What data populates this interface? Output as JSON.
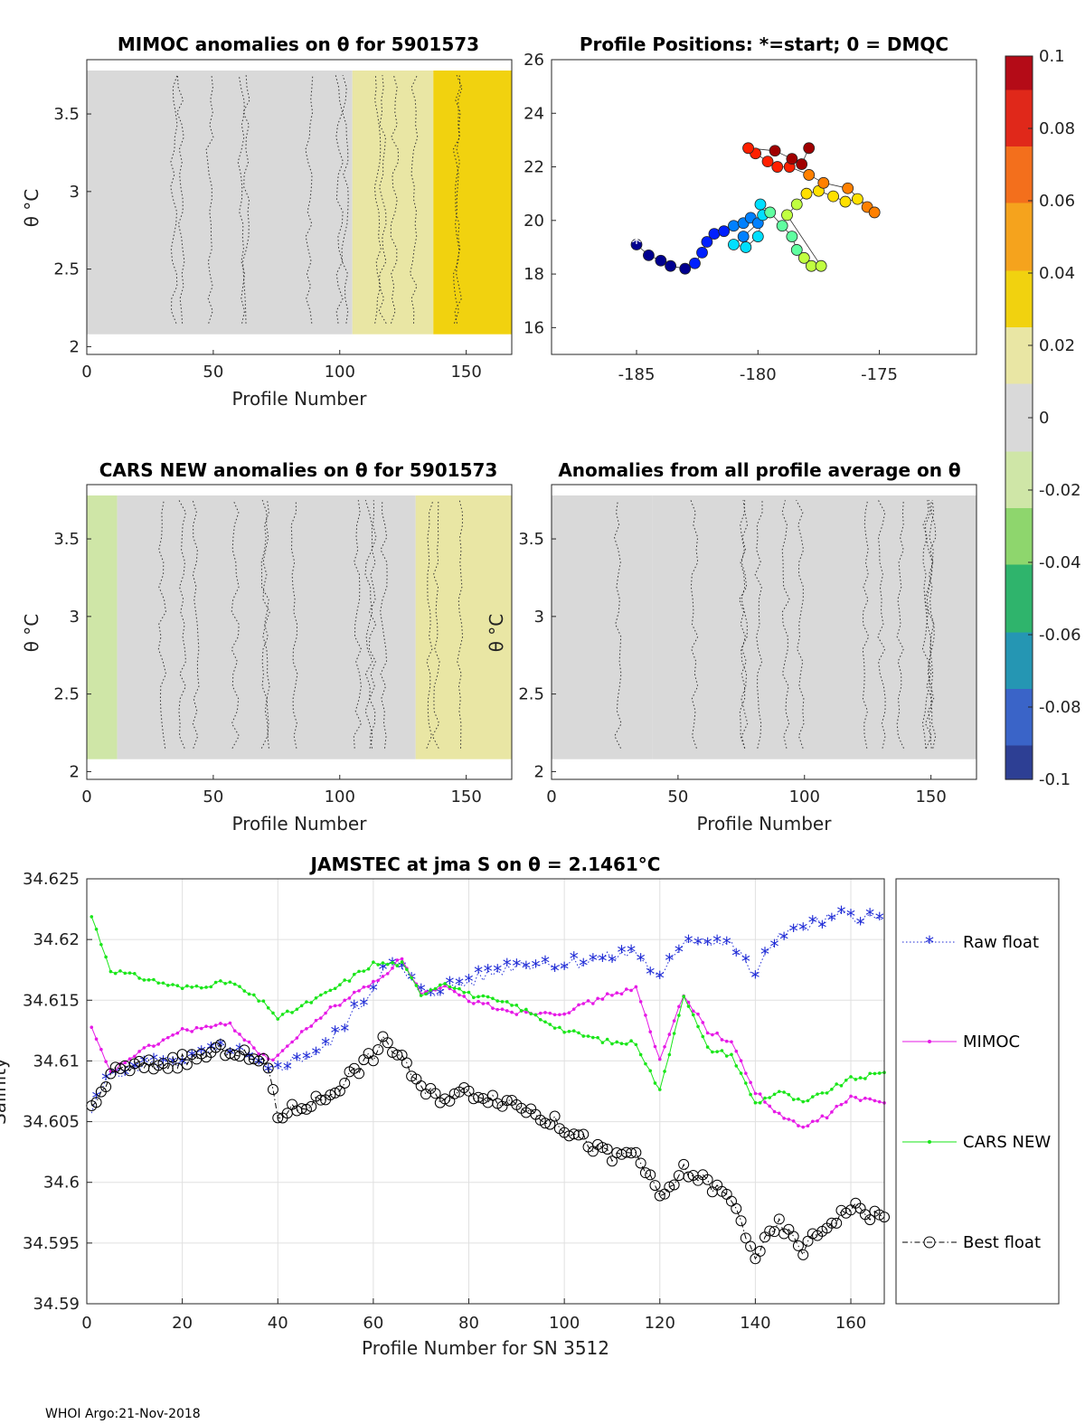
{
  "footer": "WHOI Argo:21-Nov-2018",
  "colorbar": {
    "ticks": [
      "0.1",
      "0.08",
      "0.06",
      "0.04",
      "0.02",
      "0",
      "-0.02",
      "-0.04",
      "-0.06",
      "-0.08",
      "-0.1"
    ],
    "colors": [
      "#b40b17",
      "#e0281a",
      "#f36f1c",
      "#f5a31d",
      "#f1d20f",
      "#e9e6a4",
      "#d9d9d9",
      "#cfe6a7",
      "#8ed66d",
      "#2fb46c",
      "#2596b3",
      "#3a64c8",
      "#2d3f94"
    ]
  },
  "panels": {
    "mimoc": {
      "title": "MIMOC anomalies on θ  for 5901573",
      "xlabel": "Profile Number",
      "ylabel": "θ °C",
      "xticks": [
        "0",
        "50",
        "100",
        "150"
      ],
      "yticks": [
        "2",
        "2.5",
        "3",
        "3.5"
      ]
    },
    "positions": {
      "title": "Profile Positions: *=start; 0 = DMQC",
      "xticks": [
        "-185",
        "-180",
        "-175"
      ],
      "yticks": [
        "16",
        "18",
        "20",
        "22",
        "24",
        "26"
      ]
    },
    "cars": {
      "title": "CARS NEW anomalies on θ for 5901573",
      "xlabel": "Profile Number",
      "ylabel": "θ °C",
      "xticks": [
        "0",
        "50",
        "100",
        "150"
      ],
      "yticks": [
        "2",
        "2.5",
        "3",
        "3.5"
      ]
    },
    "allavg": {
      "title": "Anomalies from all profile average on θ",
      "xlabel": "Profile Number",
      "ylabel": "θ °C",
      "xticks": [
        "0",
        "50",
        "100",
        "150"
      ],
      "yticks": [
        "2",
        "2.5",
        "3",
        "3.5"
      ]
    }
  },
  "chart_data": [
    {
      "type": "heatmap",
      "title": "MIMOC anomalies on θ  for 5901573",
      "xlabel": "Profile Number",
      "ylabel": "θ °C",
      "xlim": [
        0,
        168
      ],
      "ylim": [
        1.95,
        3.85
      ],
      "anomaly_by_profile_segment": [
        {
          "from": 0,
          "to": 105,
          "anomaly": -0.003
        },
        {
          "from": 105,
          "to": 137,
          "anomaly": 0.012
        },
        {
          "from": 137,
          "to": 168,
          "anomaly": 0.04
        }
      ],
      "clim": [
        -0.1,
        0.1
      ]
    },
    {
      "type": "scatter",
      "title": "Profile Positions: *=start; 0 = DMQC",
      "xlim": [
        -188.5,
        -171
      ],
      "ylim": [
        15,
        26
      ],
      "points_lon_lat": [
        [
          -185.0,
          19.1
        ],
        [
          -184.5,
          18.7
        ],
        [
          -184.0,
          18.5
        ],
        [
          -183.6,
          18.3
        ],
        [
          -183.0,
          18.2
        ],
        [
          -182.6,
          18.4
        ],
        [
          -182.3,
          18.8
        ],
        [
          -182.1,
          19.2
        ],
        [
          -181.8,
          19.5
        ],
        [
          -181.4,
          19.6
        ],
        [
          -181.0,
          19.8
        ],
        [
          -180.6,
          19.9
        ],
        [
          -180.3,
          20.1
        ],
        [
          -180.0,
          19.9
        ],
        [
          -180.6,
          19.4
        ],
        [
          -181.0,
          19.1
        ],
        [
          -180.5,
          19.0
        ],
        [
          -180.0,
          19.4
        ],
        [
          -179.8,
          20.2
        ],
        [
          -179.9,
          20.6
        ],
        [
          -179.5,
          20.3
        ],
        [
          -179.0,
          19.8
        ],
        [
          -178.6,
          19.4
        ],
        [
          -178.4,
          18.9
        ],
        [
          -178.1,
          18.6
        ],
        [
          -177.8,
          18.3
        ],
        [
          -177.4,
          18.3
        ],
        [
          -178.8,
          20.2
        ],
        [
          -178.4,
          20.6
        ],
        [
          -178.0,
          21.0
        ],
        [
          -177.5,
          21.1
        ],
        [
          -176.9,
          20.9
        ],
        [
          -176.4,
          20.7
        ],
        [
          -175.9,
          20.8
        ],
        [
          -175.5,
          20.5
        ],
        [
          -175.2,
          20.3
        ],
        [
          -176.3,
          21.2
        ],
        [
          -177.3,
          21.4
        ],
        [
          -177.9,
          21.7
        ],
        [
          -178.7,
          22.0
        ],
        [
          -179.2,
          22.0
        ],
        [
          -179.6,
          22.2
        ],
        [
          -180.1,
          22.5
        ],
        [
          -180.4,
          22.7
        ],
        [
          -179.3,
          22.6
        ],
        [
          -178.6,
          22.3
        ],
        [
          -178.2,
          22.1
        ],
        [
          -177.9,
          22.7
        ]
      ],
      "start_marker": [
        -185.0,
        19.2
      ]
    },
    {
      "type": "heatmap",
      "title": "CARS NEW anomalies on θ for 5901573",
      "xlabel": "Profile Number",
      "ylabel": "θ °C",
      "xlim": [
        0,
        168
      ],
      "ylim": [
        1.95,
        3.85
      ],
      "anomaly_by_profile_segment": [
        {
          "from": 0,
          "to": 12,
          "anomaly": -0.012
        },
        {
          "from": 12,
          "to": 130,
          "anomaly": -0.002
        },
        {
          "from": 130,
          "to": 168,
          "anomaly": 0.018
        }
      ],
      "clim": [
        -0.1,
        0.1
      ]
    },
    {
      "type": "heatmap",
      "title": "Anomalies from all profile average on θ",
      "xlabel": "Profile Number",
      "ylabel": "θ °C",
      "xlim": [
        0,
        168
      ],
      "ylim": [
        1.95,
        3.85
      ],
      "anomaly_by_profile_segment": [
        {
          "from": 0,
          "to": 40,
          "anomaly": -0.006
        },
        {
          "from": 40,
          "to": 168,
          "anomaly": 0.0
        }
      ],
      "clim": [
        -0.1,
        0.1
      ]
    },
    {
      "type": "line",
      "title": "JAMSTEC at jma S on θ = 2.1461°C",
      "xlabel": "Profile Number for SN 3512",
      "ylabel": "Salinity",
      "xlim": [
        0,
        167
      ],
      "ylim": [
        34.59,
        34.625
      ],
      "xticks": [
        "0",
        "20",
        "40",
        "60",
        "80",
        "100",
        "120",
        "140",
        "160"
      ],
      "yticks": [
        "34.59",
        "34.595",
        "34.6",
        "34.605",
        "34.61",
        "34.615",
        "34.62",
        "34.625"
      ],
      "grid": true,
      "legend_position": "right",
      "knots_profile": [
        0,
        5,
        10,
        20,
        30,
        38,
        40,
        50,
        60,
        62,
        66,
        70,
        75,
        80,
        90,
        100,
        110,
        115,
        120,
        125,
        130,
        135,
        140,
        145,
        150,
        155,
        160,
        167
      ],
      "series": [
        {
          "name": "Raw float",
          "color": "#1f2bd6",
          "marker": "star",
          "values": [
            34.605,
            34.609,
            34.6095,
            34.61,
            34.611,
            34.609,
            34.6095,
            34.611,
            34.616,
            34.618,
            34.6175,
            34.6155,
            34.616,
            34.6165,
            34.618,
            34.618,
            34.6185,
            34.619,
            34.6165,
            34.62,
            34.62,
            34.6195,
            34.617,
            34.6205,
            34.621,
            34.6215,
            34.622,
            34.6215
          ]
        },
        {
          "name": "MIMOC",
          "color": "#e619e6",
          "marker": "dot",
          "values": [
            34.6135,
            34.609,
            34.6105,
            34.6125,
            34.613,
            34.61,
            34.6105,
            34.614,
            34.6165,
            34.617,
            34.6185,
            34.6155,
            34.616,
            34.615,
            34.614,
            34.614,
            34.6155,
            34.616,
            34.61,
            34.6155,
            34.6125,
            34.6115,
            34.6075,
            34.6055,
            34.6045,
            34.6055,
            34.607,
            34.6065
          ]
        },
        {
          "name": "CARS NEW",
          "color": "#19e619",
          "marker": "dot",
          "values": [
            34.623,
            34.6175,
            34.617,
            34.616,
            34.6165,
            34.6145,
            34.6135,
            34.6155,
            34.618,
            34.618,
            34.618,
            34.6155,
            34.6165,
            34.6155,
            34.6145,
            34.6125,
            34.6115,
            34.6115,
            34.6075,
            34.6155,
            34.611,
            34.6105,
            34.6065,
            34.6075,
            34.6065,
            34.6075,
            34.6085,
            34.609
          ]
        },
        {
          "name": "Best float",
          "color": "#000000",
          "marker": "circle",
          "values": [
            34.605,
            34.609,
            34.6095,
            34.61,
            34.611,
            34.6095,
            34.6055,
            34.607,
            34.6105,
            34.6115,
            34.6105,
            34.6075,
            34.607,
            34.6075,
            34.6065,
            34.6045,
            34.602,
            34.6025,
            34.5985,
            34.601,
            34.6,
            34.5985,
            34.594,
            34.5965,
            34.5945,
            34.5965,
            34.598,
            34.597
          ]
        }
      ]
    }
  ]
}
